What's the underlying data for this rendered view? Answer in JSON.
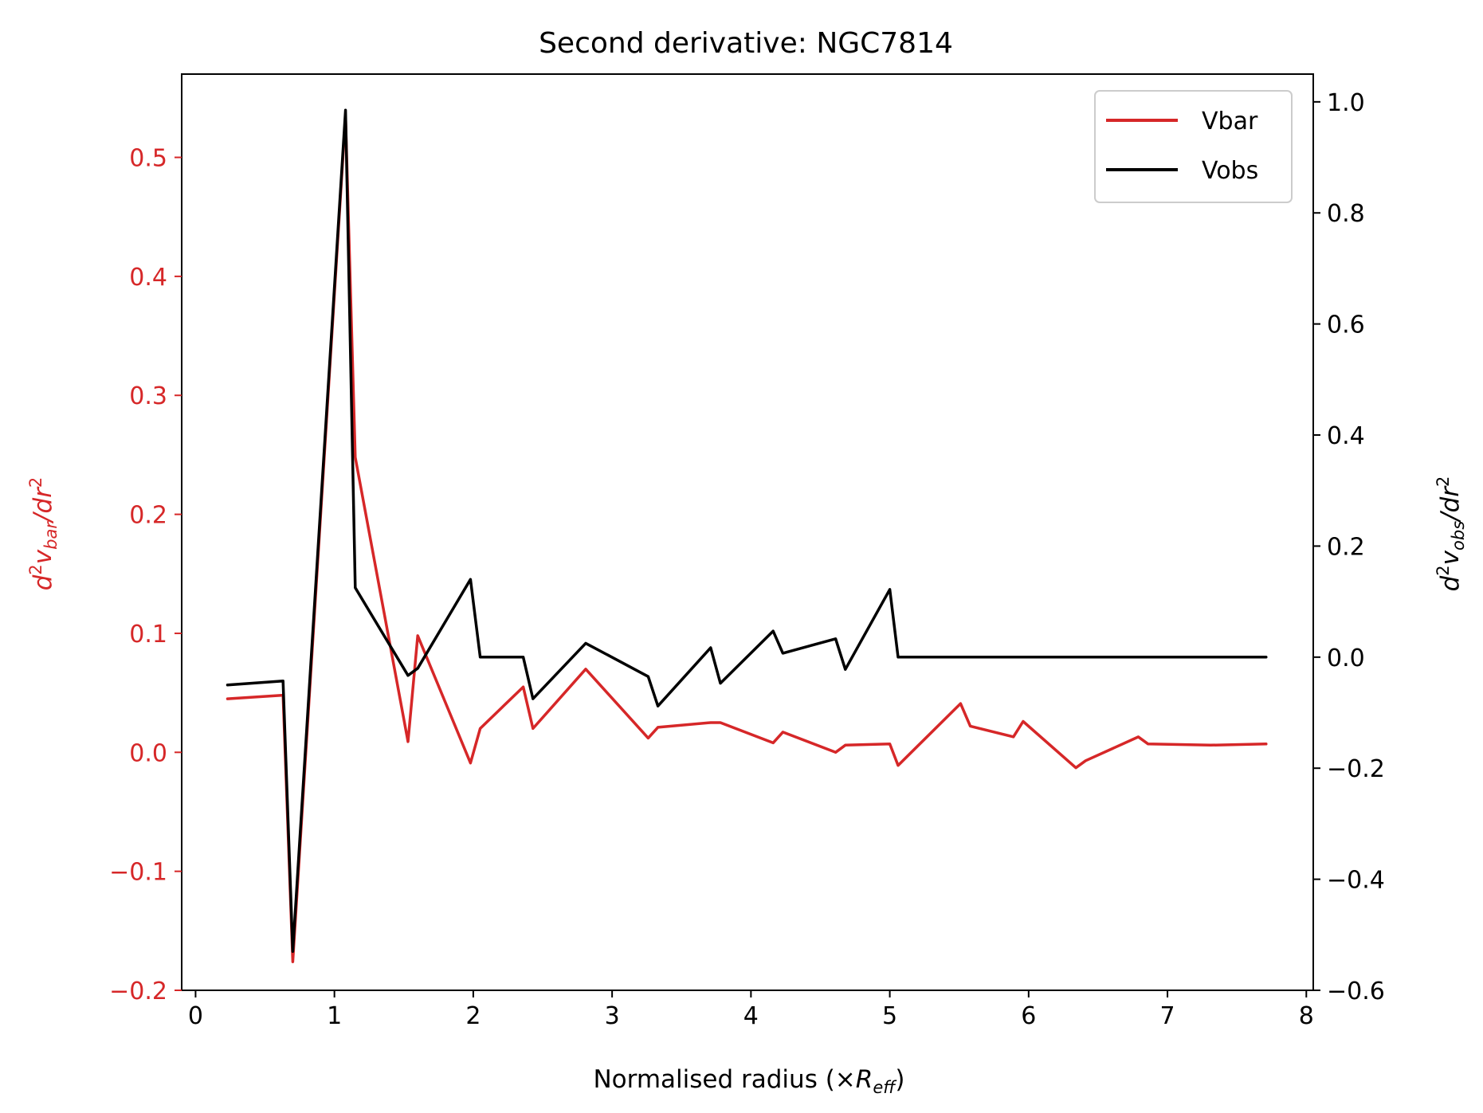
{
  "chart_data": {
    "type": "line",
    "title": "Second derivative: NGC7814",
    "xlabel": {
      "main": "Normalised radius (×",
      "var": "R",
      "sub": "eff",
      "close": ")"
    },
    "ylabel_left": {
      "d": "d",
      "sup1": "2",
      "v": "v",
      "sub": "bar",
      "mid": "/",
      "dr": "dr",
      "sup2": "2"
    },
    "ylabel_right": {
      "d": "d",
      "sup1": "2",
      "v": "v",
      "sub": "obs",
      "mid": "/",
      "dr": "dr",
      "sup2": "2"
    },
    "xlim": [
      -0.1,
      8.05
    ],
    "ylim_left": [
      -0.2,
      0.57
    ],
    "ylim_right": [
      -0.6,
      1.05
    ],
    "x_ticks": [
      "0",
      "1",
      "2",
      "3",
      "4",
      "5",
      "6",
      "7",
      "8"
    ],
    "y_left_ticks": [
      "−0.2",
      "−0.1",
      "0.0",
      "0.1",
      "0.2",
      "0.3",
      "0.4",
      "0.5"
    ],
    "y_right_ticks": [
      "−0.6",
      "−0.4",
      "−0.2",
      "0.0",
      "0.2",
      "0.4",
      "0.6",
      "0.8",
      "1.0"
    ],
    "colors": {
      "vbar": "#d62728",
      "vobs": "#000000"
    },
    "legend_position": "upper right",
    "series": [
      {
        "name": "Vbar",
        "axis": "left",
        "x": [
          0.23,
          0.63,
          0.7,
          1.08,
          1.15,
          1.53,
          1.6,
          1.98,
          2.05,
          2.36,
          2.43,
          2.81,
          3.26,
          3.33,
          3.71,
          3.78,
          4.16,
          4.23,
          4.61,
          4.68,
          5.0,
          5.06,
          5.51,
          5.58,
          5.89,
          5.96,
          6.34,
          6.41,
          6.79,
          6.86,
          7.31,
          7.71
        ],
        "y": [
          0.045,
          0.048,
          -0.176,
          0.535,
          0.248,
          0.009,
          0.098,
          -0.009,
          0.02,
          0.055,
          0.02,
          0.07,
          0.012,
          0.021,
          0.025,
          0.025,
          0.008,
          0.017,
          0.0,
          0.006,
          0.007,
          -0.011,
          0.041,
          0.022,
          0.013,
          0.026,
          -0.013,
          -0.007,
          0.013,
          0.007,
          0.006,
          0.007
        ]
      },
      {
        "name": "Vobs",
        "axis": "right",
        "x": [
          0.23,
          0.63,
          0.7,
          1.08,
          1.15,
          1.53,
          1.6,
          1.98,
          2.05,
          2.36,
          2.43,
          2.81,
          3.26,
          3.33,
          3.71,
          3.78,
          4.16,
          4.23,
          4.61,
          4.68,
          5.0,
          5.06,
          5.51,
          5.58,
          5.89,
          5.96,
          6.34,
          6.41,
          6.79,
          6.86,
          7.31,
          7.71
        ],
        "y": [
          -0.05,
          -0.043,
          -0.53,
          0.985,
          0.125,
          -0.033,
          -0.02,
          0.14,
          0.0,
          0.0,
          -0.075,
          0.025,
          -0.035,
          -0.088,
          0.017,
          -0.047,
          0.047,
          0.007,
          0.033,
          -0.022,
          0.122,
          0.0,
          0.0,
          0.0,
          0.0,
          0.0,
          0.0,
          0.0,
          0.0,
          0.0,
          0.0,
          0.0
        ]
      }
    ]
  }
}
